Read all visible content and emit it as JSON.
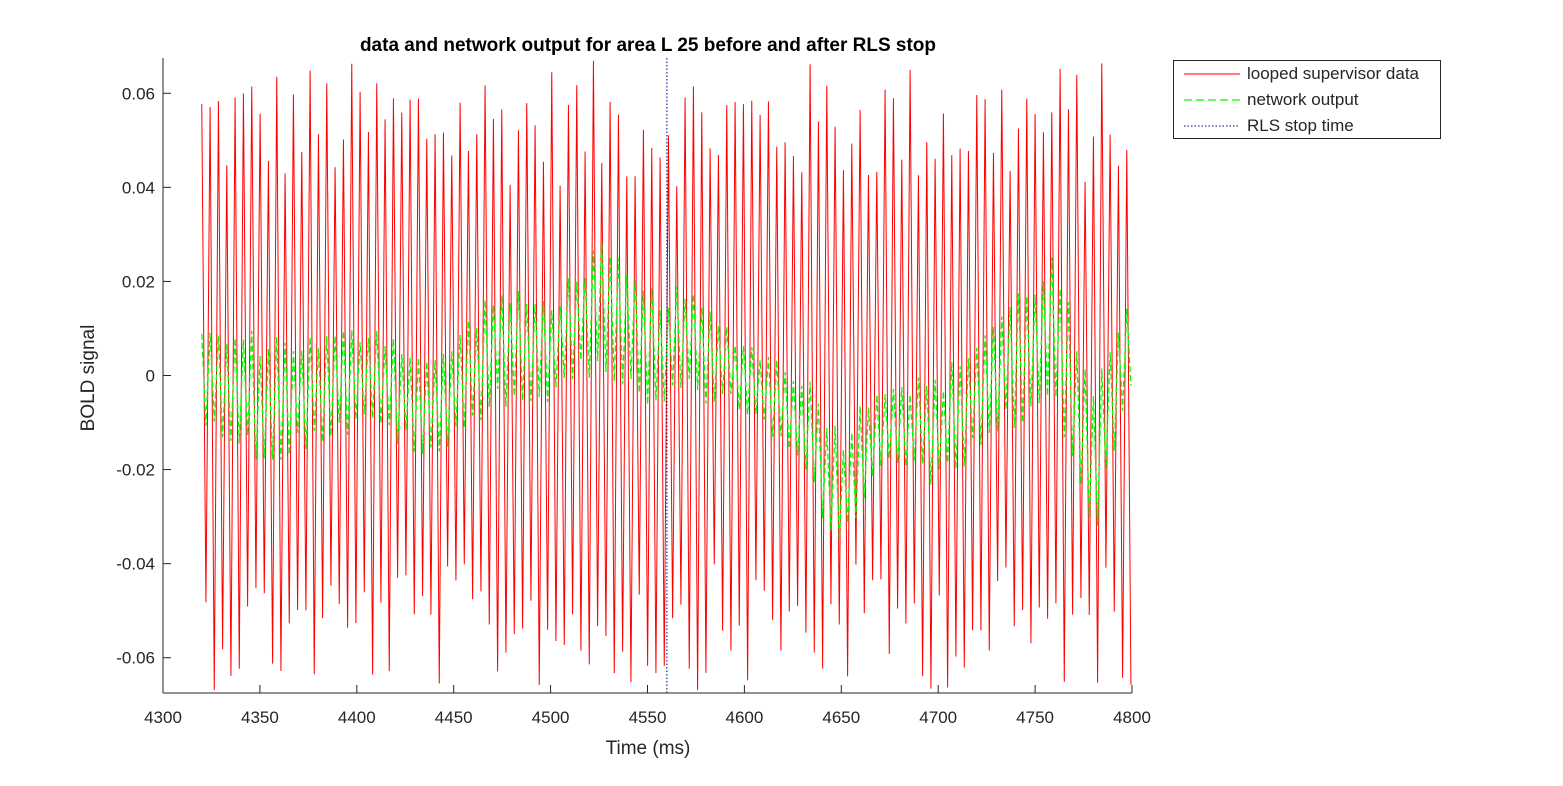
{
  "chart_data": {
    "type": "line",
    "title": "data and network output for area L 25 before and after RLS stop",
    "xlabel": "Time (ms)",
    "ylabel": "BOLD signal",
    "xlim": [
      4300,
      4800
    ],
    "ylim": [
      -0.0675,
      0.0675
    ],
    "xticks": [
      4300,
      4350,
      4400,
      4450,
      4500,
      4550,
      4600,
      4650,
      4700,
      4750,
      4800
    ],
    "xtick_labels": [
      "4300",
      "4350",
      "4400",
      "4450",
      "4500",
      "4550",
      "4600",
      "4650",
      "4700",
      "4750",
      "4800"
    ],
    "yticks": [
      0.06,
      0.04,
      0.02,
      0,
      -0.02,
      -0.04,
      -0.06
    ],
    "ytick_labels": [
      "0.06",
      "0.04",
      "0.02",
      "0",
      "-0.02",
      "-0.04",
      "-0.06"
    ],
    "grid": false,
    "legend_position": "outside-top-right",
    "series": [
      {
        "name": "looped supervisor data",
        "color": "#ff0000",
        "style": "solid",
        "x_range": [
          4320,
          4800
        ],
        "oscillation_period_ms": 4.3,
        "peak_amplitude_range": [
          0.04,
          0.067
        ],
        "trough_amplitude_range": [
          -0.04,
          -0.067
        ]
      },
      {
        "name": "network output",
        "color": "#00ff00",
        "style": "dashed",
        "x_range": [
          4320,
          4800
        ],
        "envelope_x": [
          4320,
          4350,
          4380,
          4410,
          4440,
          4470,
          4500,
          4525,
          4550,
          4570,
          4600,
          4630,
          4650,
          4670,
          4700,
          4730,
          4760,
          4780,
          4800
        ],
        "envelope_center": [
          0.0,
          -0.005,
          -0.003,
          0.0,
          -0.008,
          0.006,
          0.005,
          0.015,
          0.005,
          0.007,
          0.0,
          -0.01,
          -0.025,
          -0.01,
          -0.012,
          0.0,
          0.01,
          -0.02,
          0.01
        ],
        "envelope_halfwidth": [
          0.01,
          0.015,
          0.012,
          0.012,
          0.012,
          0.013,
          0.012,
          0.014,
          0.014,
          0.012,
          0.008,
          0.012,
          0.014,
          0.01,
          0.012,
          0.014,
          0.017,
          0.016,
          0.012
        ]
      },
      {
        "name": "RLS stop time",
        "color": "#000080",
        "style": "dotted",
        "x": 4560
      }
    ]
  }
}
